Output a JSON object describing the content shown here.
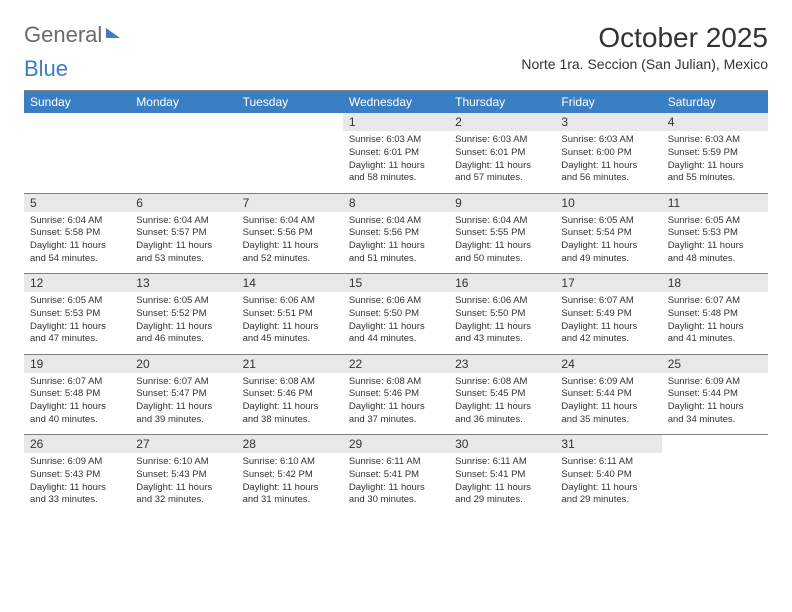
{
  "brand": {
    "part1": "General",
    "part2": "Blue"
  },
  "title": "October 2025",
  "subtitle": "Norte 1ra. Seccion (San Julian), Mexico",
  "header_bg": "#3a7fc4",
  "header_text": "#ffffff",
  "daynum_bg": "#e8e8e8",
  "border_color": "#808080",
  "day_headers": [
    "Sunday",
    "Monday",
    "Tuesday",
    "Wednesday",
    "Thursday",
    "Friday",
    "Saturday"
  ],
  "weeks": [
    [
      null,
      null,
      null,
      {
        "n": "1",
        "sr": "6:03 AM",
        "ss": "6:01 PM",
        "dl": "11 hours and 58 minutes."
      },
      {
        "n": "2",
        "sr": "6:03 AM",
        "ss": "6:01 PM",
        "dl": "11 hours and 57 minutes."
      },
      {
        "n": "3",
        "sr": "6:03 AM",
        "ss": "6:00 PM",
        "dl": "11 hours and 56 minutes."
      },
      {
        "n": "4",
        "sr": "6:03 AM",
        "ss": "5:59 PM",
        "dl": "11 hours and 55 minutes."
      }
    ],
    [
      {
        "n": "5",
        "sr": "6:04 AM",
        "ss": "5:58 PM",
        "dl": "11 hours and 54 minutes."
      },
      {
        "n": "6",
        "sr": "6:04 AM",
        "ss": "5:57 PM",
        "dl": "11 hours and 53 minutes."
      },
      {
        "n": "7",
        "sr": "6:04 AM",
        "ss": "5:56 PM",
        "dl": "11 hours and 52 minutes."
      },
      {
        "n": "8",
        "sr": "6:04 AM",
        "ss": "5:56 PM",
        "dl": "11 hours and 51 minutes."
      },
      {
        "n": "9",
        "sr": "6:04 AM",
        "ss": "5:55 PM",
        "dl": "11 hours and 50 minutes."
      },
      {
        "n": "10",
        "sr": "6:05 AM",
        "ss": "5:54 PM",
        "dl": "11 hours and 49 minutes."
      },
      {
        "n": "11",
        "sr": "6:05 AM",
        "ss": "5:53 PM",
        "dl": "11 hours and 48 minutes."
      }
    ],
    [
      {
        "n": "12",
        "sr": "6:05 AM",
        "ss": "5:53 PM",
        "dl": "11 hours and 47 minutes."
      },
      {
        "n": "13",
        "sr": "6:05 AM",
        "ss": "5:52 PM",
        "dl": "11 hours and 46 minutes."
      },
      {
        "n": "14",
        "sr": "6:06 AM",
        "ss": "5:51 PM",
        "dl": "11 hours and 45 minutes."
      },
      {
        "n": "15",
        "sr": "6:06 AM",
        "ss": "5:50 PM",
        "dl": "11 hours and 44 minutes."
      },
      {
        "n": "16",
        "sr": "6:06 AM",
        "ss": "5:50 PM",
        "dl": "11 hours and 43 minutes."
      },
      {
        "n": "17",
        "sr": "6:07 AM",
        "ss": "5:49 PM",
        "dl": "11 hours and 42 minutes."
      },
      {
        "n": "18",
        "sr": "6:07 AM",
        "ss": "5:48 PM",
        "dl": "11 hours and 41 minutes."
      }
    ],
    [
      {
        "n": "19",
        "sr": "6:07 AM",
        "ss": "5:48 PM",
        "dl": "11 hours and 40 minutes."
      },
      {
        "n": "20",
        "sr": "6:07 AM",
        "ss": "5:47 PM",
        "dl": "11 hours and 39 minutes."
      },
      {
        "n": "21",
        "sr": "6:08 AM",
        "ss": "5:46 PM",
        "dl": "11 hours and 38 minutes."
      },
      {
        "n": "22",
        "sr": "6:08 AM",
        "ss": "5:46 PM",
        "dl": "11 hours and 37 minutes."
      },
      {
        "n": "23",
        "sr": "6:08 AM",
        "ss": "5:45 PM",
        "dl": "11 hours and 36 minutes."
      },
      {
        "n": "24",
        "sr": "6:09 AM",
        "ss": "5:44 PM",
        "dl": "11 hours and 35 minutes."
      },
      {
        "n": "25",
        "sr": "6:09 AM",
        "ss": "5:44 PM",
        "dl": "11 hours and 34 minutes."
      }
    ],
    [
      {
        "n": "26",
        "sr": "6:09 AM",
        "ss": "5:43 PM",
        "dl": "11 hours and 33 minutes."
      },
      {
        "n": "27",
        "sr": "6:10 AM",
        "ss": "5:43 PM",
        "dl": "11 hours and 32 minutes."
      },
      {
        "n": "28",
        "sr": "6:10 AM",
        "ss": "5:42 PM",
        "dl": "11 hours and 31 minutes."
      },
      {
        "n": "29",
        "sr": "6:11 AM",
        "ss": "5:41 PM",
        "dl": "11 hours and 30 minutes."
      },
      {
        "n": "30",
        "sr": "6:11 AM",
        "ss": "5:41 PM",
        "dl": "11 hours and 29 minutes."
      },
      {
        "n": "31",
        "sr": "6:11 AM",
        "ss": "5:40 PM",
        "dl": "11 hours and 29 minutes."
      },
      null
    ]
  ],
  "labels": {
    "sunrise": "Sunrise:",
    "sunset": "Sunset:",
    "daylight": "Daylight:"
  }
}
